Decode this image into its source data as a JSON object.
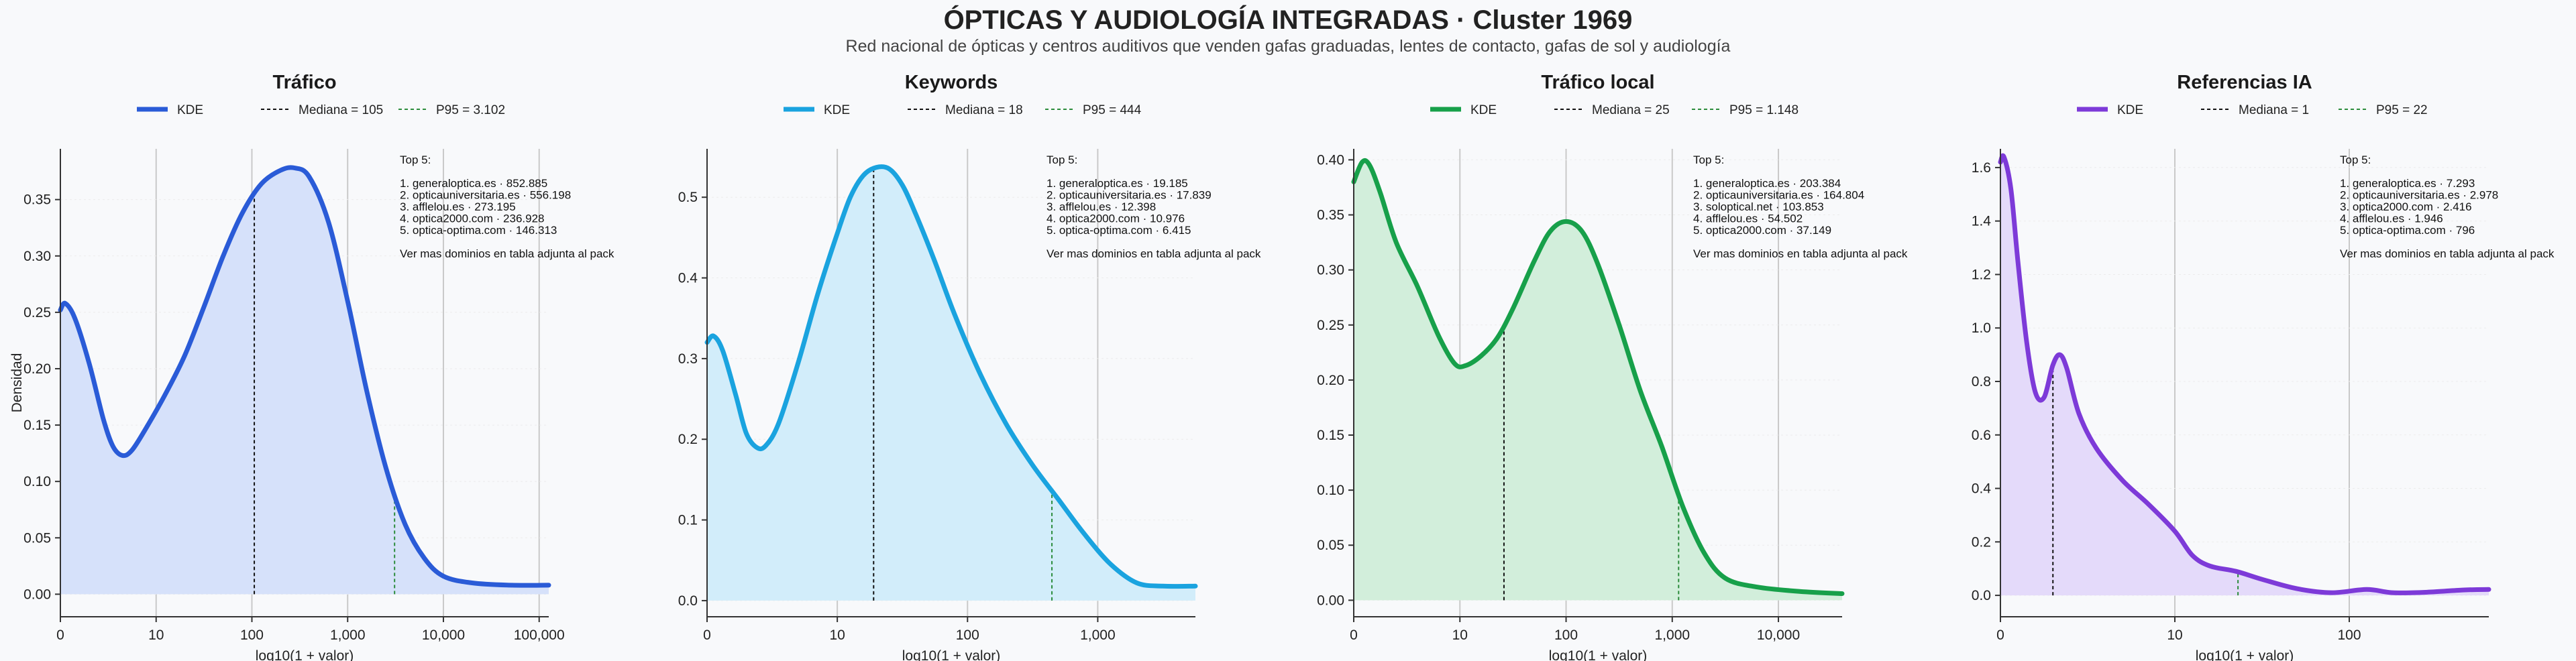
{
  "title": "ÓPTICAS Y AUDIOLOGÍA INTEGRADAS · Cluster 1969",
  "subtitle": "Red nacional de ópticas y centros auditivos que venden gafas graduadas, lentes de contacto, gafas de sol y audiología",
  "chart_data": [
    {
      "type": "area",
      "title": "Tráfico",
      "color": "#2a5bd7",
      "fill": "#d6e1fa",
      "xlabel": "log10(1 + valor)",
      "ylabel": "Densidad",
      "x_scale": "log10(1+x)",
      "xlim": [
        0,
        5.1
      ],
      "ylim": [
        -0.02,
        0.395
      ],
      "x_ticks": [
        {
          "v": 0,
          "label": "0"
        },
        {
          "v": 1,
          "label": "10"
        },
        {
          "v": 2,
          "label": "100"
        },
        {
          "v": 3,
          "label": "1,000"
        },
        {
          "v": 4,
          "label": "10,000"
        },
        {
          "v": 5,
          "label": "100,000"
        }
      ],
      "y_ticks": [
        {
          "v": 0,
          "label": "0.00"
        },
        {
          "v": 0.05,
          "label": "0.05"
        },
        {
          "v": 0.1,
          "label": "0.10"
        },
        {
          "v": 0.15,
          "label": "0.15"
        },
        {
          "v": 0.2,
          "label": "0.20"
        },
        {
          "v": 0.25,
          "label": "0.25"
        },
        {
          "v": 0.3,
          "label": "0.30"
        },
        {
          "v": 0.35,
          "label": "0.35"
        }
      ],
      "curve": [
        [
          0,
          0.252
        ],
        [
          0.05,
          0.258
        ],
        [
          0.15,
          0.245
        ],
        [
          0.3,
          0.205
        ],
        [
          0.45,
          0.155
        ],
        [
          0.55,
          0.131
        ],
        [
          0.65,
          0.123
        ],
        [
          0.75,
          0.128
        ],
        [
          0.9,
          0.148
        ],
        [
          1.1,
          0.178
        ],
        [
          1.3,
          0.212
        ],
        [
          1.5,
          0.255
        ],
        [
          1.7,
          0.3
        ],
        [
          1.9,
          0.338
        ],
        [
          2.1,
          0.364
        ],
        [
          2.3,
          0.376
        ],
        [
          2.45,
          0.378
        ],
        [
          2.6,
          0.37
        ],
        [
          2.8,
          0.33
        ],
        [
          3.0,
          0.26
        ],
        [
          3.2,
          0.18
        ],
        [
          3.4,
          0.112
        ],
        [
          3.6,
          0.062
        ],
        [
          3.8,
          0.032
        ],
        [
          4.0,
          0.016
        ],
        [
          4.3,
          0.01
        ],
        [
          4.7,
          0.008
        ],
        [
          5.1,
          0.008
        ]
      ],
      "series": [
        {
          "name": "KDE"
        },
        {
          "name": "Mediana = 105",
          "x": 2.025
        },
        {
          "name": "P95 = 3.102",
          "x": 3.49
        }
      ],
      "annotation": [
        "Top 5:",
        "",
        "1. generaloptica.es · 852.885",
        "2. opticauniversitaria.es · 556.198",
        "3. afflelou.es · 273.195",
        "4. optica2000.com · 236.928",
        "5. optica-optima.com · 146.313",
        "",
        "Ver mas dominios en tabla adjunta al pack"
      ]
    },
    {
      "type": "area",
      "title": "Keywords",
      "color": "#1aa3df",
      "fill": "#d2edfa",
      "xlabel": "log10(1 + valor)",
      "ylabel": "",
      "x_scale": "log10(1+x)",
      "xlim": [
        0,
        3.75
      ],
      "ylim": [
        -0.02,
        0.56
      ],
      "x_ticks": [
        {
          "v": 0,
          "label": "0"
        },
        {
          "v": 1,
          "label": "10"
        },
        {
          "v": 2,
          "label": "100"
        },
        {
          "v": 3,
          "label": "1,000"
        }
      ],
      "y_ticks": [
        {
          "v": 0,
          "label": "0.0"
        },
        {
          "v": 0.1,
          "label": "0.1"
        },
        {
          "v": 0.2,
          "label": "0.2"
        },
        {
          "v": 0.3,
          "label": "0.3"
        },
        {
          "v": 0.4,
          "label": "0.4"
        },
        {
          "v": 0.5,
          "label": "0.5"
        }
      ],
      "curve": [
        [
          0,
          0.32
        ],
        [
          0.05,
          0.328
        ],
        [
          0.12,
          0.31
        ],
        [
          0.22,
          0.255
        ],
        [
          0.3,
          0.208
        ],
        [
          0.38,
          0.19
        ],
        [
          0.45,
          0.192
        ],
        [
          0.55,
          0.22
        ],
        [
          0.7,
          0.295
        ],
        [
          0.85,
          0.38
        ],
        [
          1.0,
          0.455
        ],
        [
          1.1,
          0.5
        ],
        [
          1.2,
          0.527
        ],
        [
          1.3,
          0.537
        ],
        [
          1.4,
          0.535
        ],
        [
          1.5,
          0.515
        ],
        [
          1.6,
          0.48
        ],
        [
          1.75,
          0.42
        ],
        [
          1.9,
          0.355
        ],
        [
          2.1,
          0.28
        ],
        [
          2.3,
          0.218
        ],
        [
          2.5,
          0.168
        ],
        [
          2.7,
          0.125
        ],
        [
          2.9,
          0.082
        ],
        [
          3.1,
          0.045
        ],
        [
          3.3,
          0.022
        ],
        [
          3.5,
          0.018
        ],
        [
          3.75,
          0.018
        ]
      ],
      "series": [
        {
          "name": "KDE"
        },
        {
          "name": "Mediana = 18",
          "x": 1.279
        },
        {
          "name": "P95 = 444",
          "x": 2.648
        }
      ],
      "annotation": [
        "Top 5:",
        "",
        "1. generaloptica.es · 19.185",
        "2. opticauniversitaria.es · 17.839",
        "3. afflelou.es · 12.398",
        "4. optica2000.com · 10.976",
        "5. optica-optima.com · 6.415",
        "",
        "Ver mas dominios en tabla adjunta al pack"
      ]
    },
    {
      "type": "area",
      "title": "Tráfico local",
      "color": "#17a04a",
      "fill": "#d2eedb",
      "xlabel": "log10(1 + valor)",
      "ylabel": "",
      "x_scale": "log10(1+x)",
      "xlim": [
        0,
        4.6
      ],
      "ylim": [
        -0.015,
        0.41
      ],
      "x_ticks": [
        {
          "v": 0,
          "label": "0"
        },
        {
          "v": 1,
          "label": "10"
        },
        {
          "v": 2,
          "label": "100"
        },
        {
          "v": 3,
          "label": "1,000"
        },
        {
          "v": 4,
          "label": "10,000"
        }
      ],
      "y_ticks": [
        {
          "v": 0,
          "label": "0.00"
        },
        {
          "v": 0.05,
          "label": "0.05"
        },
        {
          "v": 0.1,
          "label": "0.10"
        },
        {
          "v": 0.15,
          "label": "0.15"
        },
        {
          "v": 0.2,
          "label": "0.20"
        },
        {
          "v": 0.25,
          "label": "0.25"
        },
        {
          "v": 0.3,
          "label": "0.30"
        },
        {
          "v": 0.35,
          "label": "0.35"
        },
        {
          "v": 0.4,
          "label": "0.40"
        }
      ],
      "curve": [
        [
          0,
          0.38
        ],
        [
          0.08,
          0.398
        ],
        [
          0.15,
          0.395
        ],
        [
          0.25,
          0.37
        ],
        [
          0.4,
          0.325
        ],
        [
          0.6,
          0.285
        ],
        [
          0.8,
          0.24
        ],
        [
          0.95,
          0.215
        ],
        [
          1.05,
          0.213
        ],
        [
          1.2,
          0.222
        ],
        [
          1.35,
          0.238
        ],
        [
          1.5,
          0.265
        ],
        [
          1.7,
          0.308
        ],
        [
          1.85,
          0.335
        ],
        [
          2.0,
          0.344
        ],
        [
          2.15,
          0.335
        ],
        [
          2.3,
          0.305
        ],
        [
          2.5,
          0.25
        ],
        [
          2.7,
          0.19
        ],
        [
          2.9,
          0.14
        ],
        [
          3.1,
          0.085
        ],
        [
          3.3,
          0.043
        ],
        [
          3.5,
          0.02
        ],
        [
          3.8,
          0.012
        ],
        [
          4.2,
          0.008
        ],
        [
          4.6,
          0.006
        ]
      ],
      "series": [
        {
          "name": "KDE"
        },
        {
          "name": "Mediana = 25",
          "x": 1.415
        },
        {
          "name": "P95 = 1.148",
          "x": 3.06
        }
      ],
      "annotation": [
        "Top 5:",
        "",
        "1. generaloptica.es · 203.384",
        "2. opticauniversitaria.es · 164.804",
        "3. soloptical.net · 103.853",
        "4. afflelou.es · 54.502",
        "5. optica2000.com · 37.149",
        "",
        "Ver mas dominios en tabla adjunta al pack"
      ]
    },
    {
      "type": "area",
      "title": "Referencias IA",
      "color": "#7d3ad8",
      "fill": "#e4dafa",
      "xlabel": "log10(1 + valor)",
      "ylabel": "",
      "x_scale": "log10(1+x)",
      "xlim": [
        0,
        2.8
      ],
      "ylim": [
        -0.08,
        1.67
      ],
      "x_ticks": [
        {
          "v": 0,
          "label": "0"
        },
        {
          "v": 1,
          "label": "10"
        },
        {
          "v": 2,
          "label": "100"
        }
      ],
      "y_ticks": [
        {
          "v": 0,
          "label": "0.0"
        },
        {
          "v": 0.2,
          "label": "0.2"
        },
        {
          "v": 0.4,
          "label": "0.4"
        },
        {
          "v": 0.6,
          "label": "0.6"
        },
        {
          "v": 0.8,
          "label": "0.8"
        },
        {
          "v": 1.0,
          "label": "1.0"
        },
        {
          "v": 1.2,
          "label": "1.2"
        },
        {
          "v": 1.4,
          "label": "1.4"
        },
        {
          "v": 1.6,
          "label": "1.6"
        }
      ],
      "curve": [
        [
          0,
          1.62
        ],
        [
          0.02,
          1.64
        ],
        [
          0.06,
          1.52
        ],
        [
          0.1,
          1.25
        ],
        [
          0.15,
          0.95
        ],
        [
          0.2,
          0.76
        ],
        [
          0.25,
          0.74
        ],
        [
          0.3,
          0.86
        ],
        [
          0.34,
          0.9
        ],
        [
          0.38,
          0.85
        ],
        [
          0.45,
          0.68
        ],
        [
          0.55,
          0.55
        ],
        [
          0.7,
          0.43
        ],
        [
          0.85,
          0.34
        ],
        [
          1.0,
          0.24
        ],
        [
          1.1,
          0.15
        ],
        [
          1.2,
          0.11
        ],
        [
          1.35,
          0.09
        ],
        [
          1.5,
          0.06
        ],
        [
          1.7,
          0.025
        ],
        [
          1.9,
          0.01
        ],
        [
          2.1,
          0.022
        ],
        [
          2.25,
          0.01
        ],
        [
          2.45,
          0.012
        ],
        [
          2.65,
          0.02
        ],
        [
          2.8,
          0.022
        ]
      ],
      "series": [
        {
          "name": "KDE"
        },
        {
          "name": "Mediana = 1",
          "x": 0.301
        },
        {
          "name": "P95 = 22",
          "x": 1.362
        }
      ],
      "annotation": [
        "Top 5:",
        "",
        "1. generaloptica.es · 7.293",
        "2. opticauniversitaria.es · 2.978",
        "3. optica2000.com · 2.416",
        "4. afflelou.es · 1.946",
        "5. optica-optima.com · 796",
        "",
        "Ver mas dominios en tabla adjunta al pack"
      ]
    }
  ]
}
